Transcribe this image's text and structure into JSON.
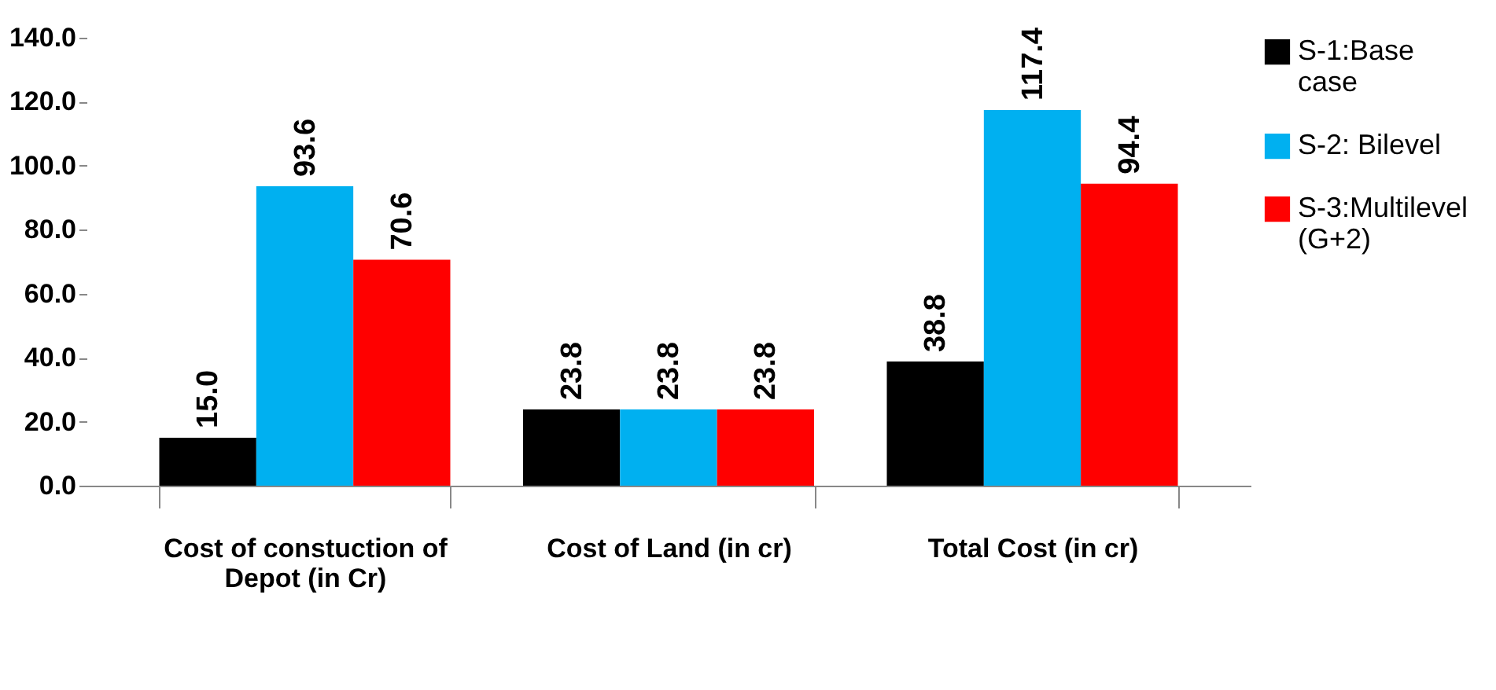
{
  "chart_data": {
    "type": "bar",
    "categories": [
      "Cost of constuction of Depot (in Cr)",
      "Cost of Land (in cr)",
      "Total Cost (in cr)"
    ],
    "series": [
      {
        "name": "S-1:Base case",
        "color": "#000000",
        "values": [
          15.0,
          23.8,
          38.8
        ],
        "value_labels": [
          "15.0",
          "23.8",
          "38.8"
        ]
      },
      {
        "name": "S-2: Bilevel",
        "color": "#00b0f0",
        "values": [
          93.6,
          23.8,
          117.4
        ],
        "value_labels": [
          "93.6",
          "23.8",
          "117.4"
        ]
      },
      {
        "name": "S-3:Multilevel (G+2)",
        "color": "#ff0000",
        "values": [
          70.6,
          23.8,
          94.4
        ],
        "value_labels": [
          "70.6",
          "23.8",
          "94.4"
        ]
      }
    ],
    "ylim": [
      0,
      140
    ],
    "yticks": [
      {
        "value": 0,
        "label": "0.0"
      },
      {
        "value": 20,
        "label": "20.0"
      },
      {
        "value": 40,
        "label": "40.0"
      },
      {
        "value": 60,
        "label": "60.0"
      },
      {
        "value": 80,
        "label": "80.0"
      },
      {
        "value": 100,
        "label": "100.0"
      },
      {
        "value": 120,
        "label": "120.0"
      },
      {
        "value": 140,
        "label": "140.0"
      }
    ],
    "legend": "right"
  }
}
